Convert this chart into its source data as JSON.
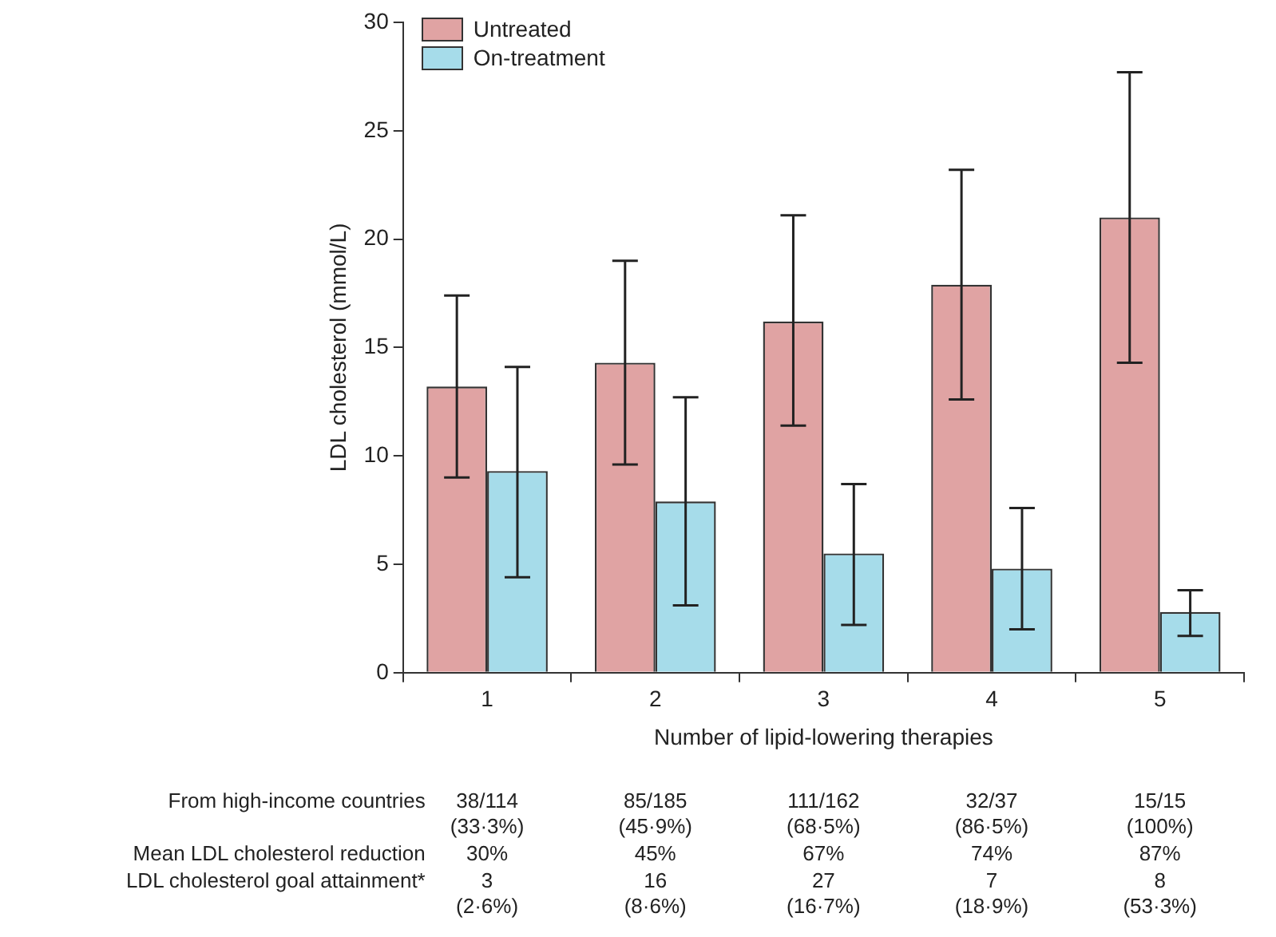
{
  "chart_data": {
    "type": "bar",
    "xlabel": "Number of lipid-lowering therapies",
    "ylabel": "LDL cholesterol (mmol/L)",
    "categories": [
      "1",
      "2",
      "3",
      "4",
      "5"
    ],
    "series": [
      {
        "name": "Untreated",
        "color": "#e0a3a3",
        "values": [
          13.2,
          14.3,
          16.2,
          17.9,
          21.0
        ],
        "errors": [
          [
            9.0,
            17.4
          ],
          [
            9.6,
            19.0
          ],
          [
            11.4,
            21.1
          ],
          [
            12.6,
            23.2
          ],
          [
            14.3,
            27.7
          ]
        ]
      },
      {
        "name": "On-treatment",
        "color": "#a6dcea",
        "values": [
          9.3,
          7.9,
          5.5,
          4.8,
          2.8
        ],
        "errors": [
          [
            4.4,
            14.1
          ],
          [
            3.1,
            12.7
          ],
          [
            2.2,
            8.7
          ],
          [
            2.0,
            7.6
          ],
          [
            1.7,
            3.8
          ]
        ]
      }
    ],
    "ylim": [
      0,
      30
    ],
    "yticks": [
      0,
      5,
      10,
      15,
      20,
      25,
      30
    ],
    "legend": "top left",
    "annotations": [
      "From high-income countries",
      "38/114\n(33·3%)",
      "85/185\n(45·9%)",
      "111/162\n(68·5%)",
      "32/37\n(86·5%)",
      "15/15\n(100%)",
      "Mean LDL cholesterol reduction",
      "30%",
      "45%",
      "67%",
      "74%",
      "87%",
      "LDL cholesterol goal attainment*",
      "3\n(2·6%)",
      "16\n(8·6%)",
      "27\n(16·7%)",
      "7\n(18·9%)",
      "8\n(53·3%)"
    ]
  }
}
